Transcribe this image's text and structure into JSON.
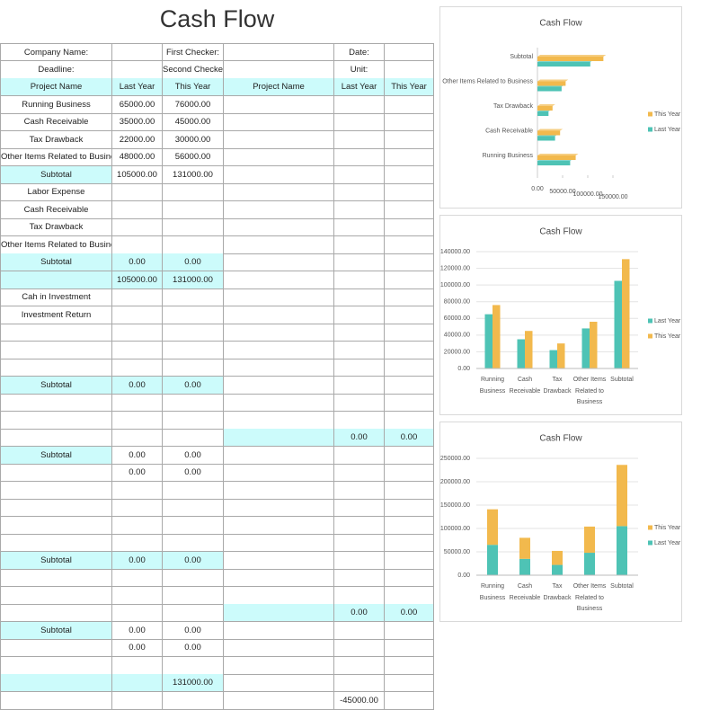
{
  "title": "Cash Flow",
  "table": {
    "rows": [
      [
        "Company Name:",
        null,
        "First Checker:",
        null,
        "Date:",
        null
      ],
      [
        "Deadline:",
        null,
        "Second Checker:",
        null,
        "Unit:",
        null
      ],
      [
        "Project Name",
        "Last Year",
        "This Year",
        "Project Name",
        "Last Year",
        "This Year"
      ],
      [
        "Running Business",
        "65000.00",
        "76000.00",
        null,
        null,
        null
      ],
      [
        "Cash Receivable",
        "35000.00",
        "45000.00",
        null,
        null,
        null
      ],
      [
        "Tax Drawback",
        "22000.00",
        "30000.00",
        null,
        null,
        null
      ],
      [
        "Other Items Related to Business",
        "48000.00",
        "56000.00",
        null,
        null,
        null
      ],
      [
        "Subtotal",
        "105000.00",
        "131000.00",
        null,
        null,
        null
      ],
      [
        "Labor Expense",
        null,
        null,
        null,
        null,
        null
      ],
      [
        "Cash Receivable",
        null,
        null,
        null,
        null,
        null
      ],
      [
        "Tax Drawback",
        null,
        null,
        null,
        null,
        null
      ],
      [
        "Other Items Related to Business",
        null,
        null,
        null,
        null,
        null
      ],
      [
        "Subtotal",
        "0.00",
        "0.00",
        null,
        null,
        null
      ],
      [
        null,
        "105000.00",
        "131000.00",
        null,
        null,
        null
      ],
      [
        "Cah in Investment",
        null,
        null,
        null,
        null,
        null
      ],
      [
        "Investment Return",
        null,
        null,
        null,
        null,
        null
      ],
      [
        null,
        null,
        null,
        null,
        null,
        null
      ],
      [
        null,
        null,
        null,
        null,
        null,
        null
      ],
      [
        null,
        null,
        null,
        null,
        null,
        null
      ],
      [
        "Subtotal",
        "0.00",
        "0.00",
        null,
        null,
        null
      ],
      [
        null,
        null,
        null,
        null,
        null,
        null
      ],
      [
        null,
        null,
        null,
        null,
        null,
        null
      ],
      [
        null,
        null,
        null,
        null,
        "0.00",
        "0.00"
      ],
      [
        "Subtotal",
        "0.00",
        "0.00",
        null,
        null,
        null
      ],
      [
        null,
        "0.00",
        "0.00",
        null,
        null,
        null
      ],
      [
        null,
        null,
        null,
        null,
        null,
        null
      ],
      [
        null,
        null,
        null,
        null,
        null,
        null
      ],
      [
        null,
        null,
        null,
        null,
        null,
        null
      ],
      [
        null,
        null,
        null,
        null,
        null,
        null
      ],
      [
        "Subtotal",
        "0.00",
        "0.00",
        null,
        null,
        null
      ],
      [
        null,
        null,
        null,
        null,
        null,
        null
      ],
      [
        null,
        null,
        null,
        null,
        null,
        null
      ],
      [
        null,
        null,
        null,
        null,
        "0.00",
        "0.00"
      ],
      [
        "Subtotal",
        "0.00",
        "0.00",
        null,
        null,
        null
      ],
      [
        null,
        "0.00",
        "0.00",
        null,
        null,
        null
      ],
      [
        null,
        null,
        null,
        null,
        null,
        null
      ],
      [
        null,
        null,
        "131000.00",
        null,
        null,
        null
      ],
      [
        null,
        null,
        null,
        null,
        "-45000.00",
        null
      ]
    ]
  },
  "chart_data": [
    {
      "type": "bar",
      "orientation": "horizontal",
      "title": "Cash Flow",
      "categories": [
        "Running Business",
        "Cash Receivable",
        "Tax Drawback",
        "Other Items Related to Business",
        "Subtotal"
      ],
      "series": [
        {
          "name": "Last Year",
          "color": "#4ec3b5",
          "values": [
            65000,
            35000,
            22000,
            48000,
            105000
          ]
        },
        {
          "name": "This Year",
          "color": "#f2b94d",
          "values": [
            76000,
            45000,
            30000,
            56000,
            131000
          ]
        }
      ],
      "xlim": [
        0,
        150000
      ],
      "xticks": [
        {
          "value": 0,
          "label": "0.00"
        },
        {
          "value": 50000,
          "label": "50000.00"
        },
        {
          "value": 100000,
          "label": "100000.00"
        },
        {
          "value": 150000,
          "label": "150000.00"
        }
      ],
      "legend": "right"
    },
    {
      "type": "bar",
      "title": "Cash Flow",
      "categories": [
        "Running Business",
        "Cash Receivable",
        "Tax Drawback",
        "Other Items Related to Business",
        "Subtotal"
      ],
      "series": [
        {
          "name": "Last Year",
          "color": "#4ec3b5",
          "values": [
            65000,
            35000,
            22000,
            48000,
            105000
          ]
        },
        {
          "name": "This Year",
          "color": "#f2b94d",
          "values": [
            76000,
            45000,
            30000,
            56000,
            131000
          ]
        }
      ],
      "ylim": [
        0,
        140000
      ],
      "yticks": [
        {
          "value": 0,
          "label": "0.00"
        },
        {
          "value": 20000,
          "label": "20000.00"
        },
        {
          "value": 40000,
          "label": "40000.00"
        },
        {
          "value": 60000,
          "label": "60000.00"
        },
        {
          "value": 80000,
          "label": "80000.00"
        },
        {
          "value": 100000,
          "label": "100000.00"
        },
        {
          "value": 120000,
          "label": "120000.00"
        },
        {
          "value": 140000,
          "label": "140000.00"
        }
      ],
      "grid": true,
      "legend": "right"
    },
    {
      "type": "bar",
      "stacked": true,
      "title": "Cash Flow",
      "categories": [
        "Running Business",
        "Cash Receivable",
        "Tax Drawback",
        "Other Items Related to Business",
        "Subtotal"
      ],
      "series": [
        {
          "name": "Last Year",
          "color": "#4ec3b5",
          "values": [
            65000,
            35000,
            22000,
            48000,
            105000
          ]
        },
        {
          "name": "This Year",
          "color": "#f2b94d",
          "values": [
            76000,
            45000,
            30000,
            56000,
            131000
          ]
        }
      ],
      "ylim": [
        0,
        250000
      ],
      "yticks": [
        {
          "value": 0,
          "label": "0.00"
        },
        {
          "value": 50000,
          "label": "50000.00"
        },
        {
          "value": 100000,
          "label": "100000.00"
        },
        {
          "value": 150000,
          "label": "150000.00"
        },
        {
          "value": 200000,
          "label": "200000.00"
        },
        {
          "value": 250000,
          "label": "250000.00"
        }
      ],
      "grid": true,
      "legend": "right"
    }
  ]
}
